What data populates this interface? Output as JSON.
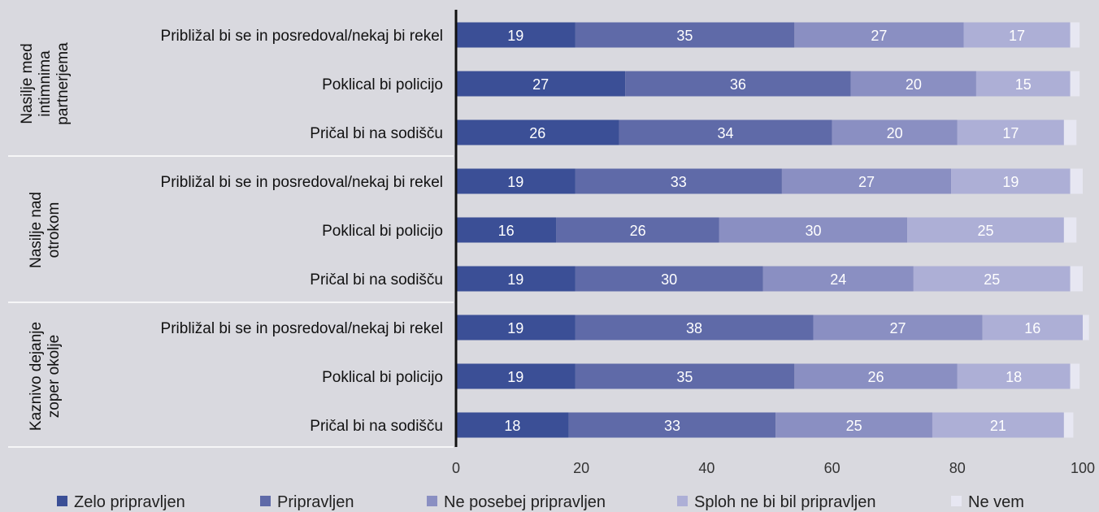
{
  "chart_data": {
    "type": "bar",
    "orientation": "horizontal",
    "stacked": true,
    "groups": [
      {
        "name": [
          "Nasilje med",
          "intimnima",
          "partnerjema"
        ],
        "rows": [
          {
            "label": "Približal bi se in posredoval/nekaj bi rekel",
            "values": [
              19,
              35,
              27,
              17,
              1.5
            ]
          },
          {
            "label": "Poklical bi policijo",
            "values": [
              27,
              36,
              20,
              15,
              1.5
            ]
          },
          {
            "label": "Pričal bi na sodišču",
            "values": [
              26,
              34,
              20,
              17,
              2
            ]
          }
        ]
      },
      {
        "name": [
          "Nasilje nad",
          "otrokom"
        ],
        "rows": [
          {
            "label": "Približal bi se in posredoval/nekaj bi rekel",
            "values": [
              19,
              33,
              27,
              19,
              2
            ]
          },
          {
            "label": "Poklical bi policijo",
            "values": [
              16,
              26,
              30,
              25,
              2
            ]
          },
          {
            "label": "Pričal bi na sodišču",
            "values": [
              19,
              30,
              24,
              25,
              2
            ]
          }
        ]
      },
      {
        "name": [
          "Kaznivo dejanje",
          "zoper okolje"
        ],
        "rows": [
          {
            "label": "Približal bi se in posredoval/nekaj bi rekel",
            "values": [
              19,
              38,
              27,
              16,
              1
            ]
          },
          {
            "label": "Poklical bi policijo",
            "values": [
              19,
              35,
              26,
              18,
              1.5
            ]
          },
          {
            "label": "Pričal bi na sodišču",
            "values": [
              18,
              33,
              25,
              21,
              1.5
            ]
          }
        ]
      }
    ],
    "series": [
      {
        "name": "Zelo pripravljen",
        "color": "#3b4f96"
      },
      {
        "name": "Pripravljen",
        "color": "#5f6aa8"
      },
      {
        "name": "Ne posebej pripravljen",
        "color": "#8a8fc2"
      },
      {
        "name": "Sploh ne bi bil pripravljen",
        "color": "#adafd6"
      },
      {
        "name": "Ne vem",
        "color": "#e7e7f2"
      }
    ],
    "labeled_series_count": 4,
    "xlim": [
      0,
      100
    ],
    "xticks": [
      0,
      20,
      40,
      60,
      80,
      100
    ],
    "legend_position": "bottom",
    "grid": false
  }
}
